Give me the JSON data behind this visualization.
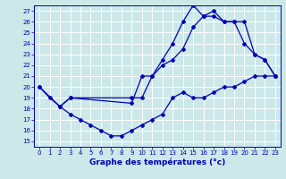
{
  "xlabel": "Graphe des températures (°c)",
  "background_color": "#cce8e8",
  "grid_color": "#ffffff",
  "line_color": "#0000bb",
  "xlim": [
    -0.5,
    23.5
  ],
  "ylim": [
    14.5,
    27.5
  ],
  "yticks": [
    15,
    16,
    17,
    18,
    19,
    20,
    21,
    22,
    23,
    24,
    25,
    26,
    27
  ],
  "xticks": [
    0,
    1,
    2,
    3,
    4,
    5,
    6,
    7,
    8,
    9,
    10,
    11,
    12,
    13,
    14,
    15,
    16,
    17,
    18,
    19,
    20,
    21,
    22,
    23
  ],
  "line1_x": [
    0,
    1,
    2,
    3,
    4,
    5,
    6,
    7,
    8,
    9,
    10,
    11,
    12,
    13,
    14,
    15,
    16,
    17,
    18,
    19,
    20,
    21,
    22,
    23
  ],
  "line1_y": [
    20,
    19,
    18.2,
    17.5,
    17.0,
    16.5,
    16.0,
    15.5,
    15.5,
    16.0,
    16.5,
    17.0,
    17.5,
    19.0,
    19.5,
    19.0,
    19.0,
    19.5,
    20.0,
    20.0,
    20.5,
    21.0,
    21.0,
    21.0
  ],
  "line2_x": [
    0,
    2,
    3,
    9,
    10,
    11,
    12,
    13,
    14,
    15,
    16,
    17,
    18,
    19,
    20,
    21,
    22,
    23
  ],
  "line2_y": [
    20,
    18.2,
    19.0,
    18.5,
    21.0,
    21.0,
    22.5,
    24.0,
    26.0,
    27.5,
    26.5,
    27.0,
    26.0,
    26.0,
    26.0,
    23.0,
    22.5,
    21.0
  ],
  "line3_x": [
    2,
    3,
    9,
    10,
    11,
    12,
    13,
    14,
    15,
    16,
    17,
    18,
    19,
    20,
    21,
    22,
    23
  ],
  "line3_y": [
    18.2,
    19.0,
    19.0,
    19.0,
    21.0,
    22.0,
    22.5,
    23.5,
    25.5,
    26.5,
    26.5,
    26.0,
    26.0,
    24.0,
    23.0,
    22.5,
    21.0
  ]
}
